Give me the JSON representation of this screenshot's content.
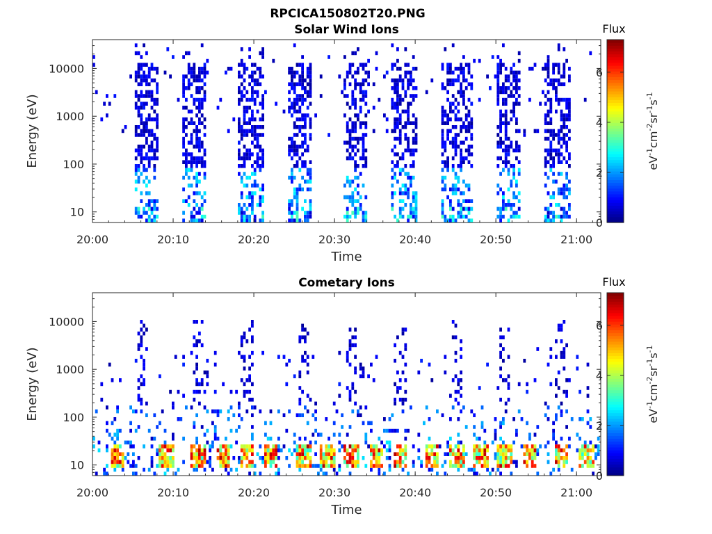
{
  "figure": {
    "title": "RPCICA150802T20.PNG"
  },
  "colors": {
    "colormap": "jet",
    "axis": "#262626"
  },
  "chart_data": [
    {
      "type": "heatmap",
      "title": "Solar Wind Ions",
      "xlabel": "Time",
      "ylabel": "Energy (eV)",
      "y_scale": "log",
      "ylim": [
        6,
        40000
      ],
      "xlim": [
        "20:00",
        "21:03"
      ],
      "x_ticks": [
        "20:00",
        "20:10",
        "20:20",
        "20:30",
        "20:40",
        "20:50",
        "21:00"
      ],
      "y_ticks": [
        "10",
        "100",
        "1000",
        "10000"
      ],
      "colorbar": {
        "title": "Flux",
        "label": "eV-1cm-2sr-1s-1",
        "range": [
          0,
          7.3
        ],
        "ticks": [
          "0",
          "2",
          "4",
          "6"
        ]
      },
      "pattern": "bursts",
      "bursts": [
        {
          "start": "20:05",
          "end": "20:08"
        },
        {
          "start": "20:11",
          "end": "20:14"
        },
        {
          "start": "20:18",
          "end": "20:21"
        },
        {
          "start": "20:24",
          "end": "20:27"
        },
        {
          "start": "20:31",
          "end": "20:34"
        },
        {
          "start": "20:37",
          "end": "20:40"
        },
        {
          "start": "20:43",
          "end": "20:47"
        },
        {
          "start": "20:50",
          "end": "20:53"
        },
        {
          "start": "20:56",
          "end": "20:59"
        }
      ]
    },
    {
      "type": "heatmap",
      "title": "Cometary Ions",
      "xlabel": "Time",
      "ylabel": "Energy (eV)",
      "y_scale": "log",
      "ylim": [
        6,
        40000
      ],
      "xlim": [
        "20:00",
        "21:03"
      ],
      "x_ticks": [
        "20:00",
        "20:10",
        "20:20",
        "20:30",
        "20:40",
        "20:50",
        "21:00"
      ],
      "y_ticks": [
        "10",
        "100",
        "1000",
        "10000"
      ],
      "colorbar": {
        "title": "Flux",
        "label": "eV-1cm-2sr-1s-1",
        "range": [
          0,
          7.3
        ],
        "ticks": [
          "0",
          "2",
          "4",
          "6"
        ]
      },
      "pattern": "low-energy hotspots",
      "hotspot_energy_range_ev": [
        10,
        30
      ],
      "hotspots": [
        "20:03",
        "20:09",
        "20:13",
        "20:16",
        "20:19",
        "20:22",
        "20:26",
        "20:29",
        "20:32",
        "20:35",
        "20:38",
        "20:42",
        "20:45",
        "20:48",
        "20:51",
        "20:54",
        "20:58",
        "21:01"
      ],
      "high_energy_spikes": [
        "20:06",
        "20:13",
        "20:19",
        "20:26",
        "20:32",
        "20:38",
        "20:45",
        "20:51",
        "20:58"
      ]
    }
  ]
}
